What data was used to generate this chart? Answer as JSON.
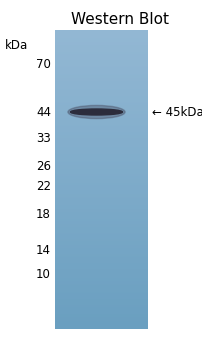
{
  "title": "Western Blot",
  "title_fontsize": 11,
  "title_color": "#000000",
  "background_color": "#ffffff",
  "gel_color_top": "#93b8d4",
  "gel_color_bottom": "#6a9fc0",
  "band_color": "#2c2c3c",
  "band_shadow_color": "#404055",
  "kda_label": "kDa",
  "marker_labels": [
    "70",
    "44",
    "33",
    "26",
    "22",
    "18",
    "14",
    "10"
  ],
  "annotation_label": "← 45kDa",
  "annotation_fontsize": 8.5,
  "marker_fontsize": 8.5,
  "fig_width": 2.03,
  "fig_height": 3.37,
  "dpi": 100
}
